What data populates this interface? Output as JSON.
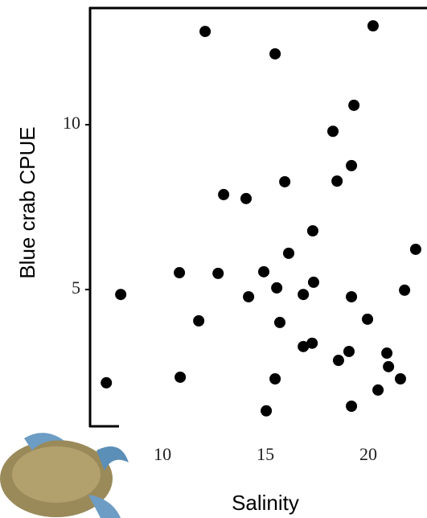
{
  "chart_data": {
    "type": "scatter",
    "x_label": "Salinity",
    "y_label": "Blue crab CPUE",
    "color": "#000000",
    "x": [
      7.27,
      7.97,
      10.86,
      10.82,
      11.76,
      12.07,
      12.7,
      12.97,
      14.06,
      14.18,
      14.92,
      15.04,
      15.47,
      15.47,
      15.55,
      15.7,
      15.94,
      16.13,
      16.84,
      16.84,
      17.27,
      17.3,
      17.34,
      18.28,
      18.48,
      18.55,
      19.06,
      19.18,
      19.18,
      19.18,
      19.3,
      19.96,
      20.23,
      20.47,
      20.9,
      20.98,
      21.56,
      21.76,
      22.3
    ],
    "values": [
      2.17,
      4.85,
      2.34,
      5.51,
      4.05,
      12.83,
      5.49,
      7.88,
      7.76,
      4.78,
      5.54,
      1.32,
      12.15,
      2.29,
      5.05,
      4.0,
      8.27,
      6.1,
      3.27,
      4.85,
      3.37,
      6.78,
      5.22,
      9.8,
      8.29,
      2.85,
      3.12,
      1.46,
      8.76,
      4.78,
      10.59,
      4.1,
      13.0,
      1.95,
      3.07,
      2.66,
      2.29,
      4.98,
      6.22
    ],
    "xlim": [
      6.48,
      22.85
    ],
    "ylim": [
      0.85,
      13.54
    ],
    "xticks": [
      10,
      15,
      20
    ],
    "yticks": [
      5,
      10
    ]
  }
}
